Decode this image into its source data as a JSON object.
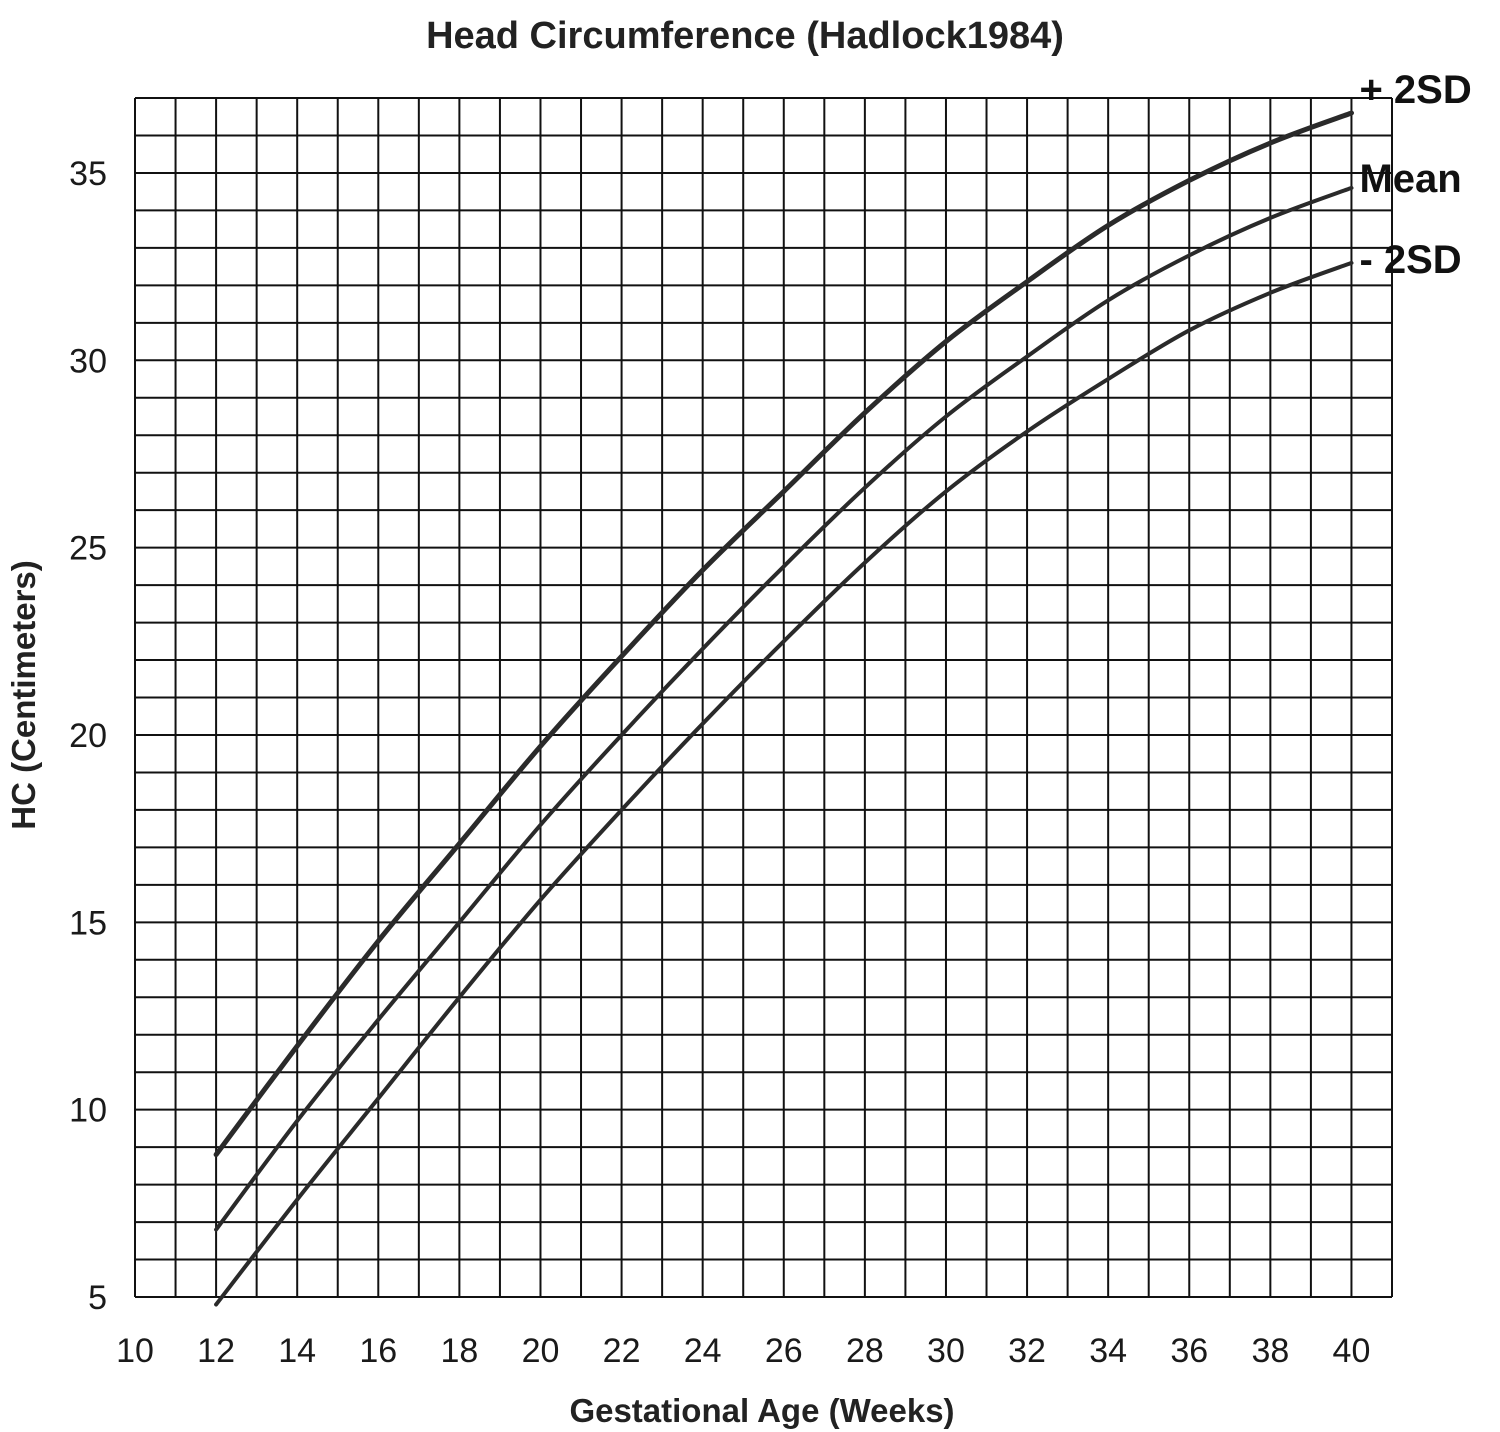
{
  "chart_data": {
    "type": "line",
    "title": "Head Circumference (Hadlock1984)",
    "xlabel": "Gestational Age (Weeks)",
    "ylabel": "HC (Centimeters)",
    "xlim": [
      10,
      41
    ],
    "ylim": [
      5,
      37
    ],
    "x_ticks": [
      "10",
      "12",
      "14",
      "16",
      "18",
      "20",
      "22",
      "24",
      "26",
      "28",
      "30",
      "32",
      "34",
      "36",
      "38",
      "40"
    ],
    "y_ticks": [
      "5",
      "10",
      "15",
      "20",
      "25",
      "30",
      "35"
    ],
    "x_grid_step": 1,
    "y_grid_step": 1,
    "grid": true,
    "legend": "series labels at right end of lines",
    "series": [
      {
        "name": "+ 2SD",
        "x": [
          12,
          14,
          16,
          18,
          20,
          22,
          24,
          26,
          28,
          30,
          32,
          34,
          36,
          38,
          40
        ],
        "values": [
          8.8,
          11.7,
          14.5,
          17.1,
          19.7,
          22.1,
          24.4,
          26.5,
          28.6,
          30.5,
          32.1,
          33.6,
          34.8,
          35.8,
          36.6
        ]
      },
      {
        "name": "Mean",
        "x": [
          12,
          14,
          16,
          18,
          20,
          22,
          24,
          26,
          28,
          30,
          32,
          34,
          36,
          38,
          40
        ],
        "values": [
          6.8,
          9.7,
          12.4,
          15.0,
          17.6,
          20.0,
          22.3,
          24.5,
          26.6,
          28.5,
          30.1,
          31.6,
          32.8,
          33.8,
          34.6
        ]
      },
      {
        "name": "- 2SD",
        "x": [
          12,
          14,
          16,
          18,
          20,
          22,
          24,
          26,
          28,
          30,
          32,
          34,
          36,
          38,
          40
        ],
        "values": [
          4.8,
          7.6,
          10.3,
          13.0,
          15.6,
          18.0,
          20.3,
          22.5,
          24.6,
          26.5,
          28.1,
          29.5,
          30.8,
          31.8,
          32.6
        ]
      }
    ]
  }
}
